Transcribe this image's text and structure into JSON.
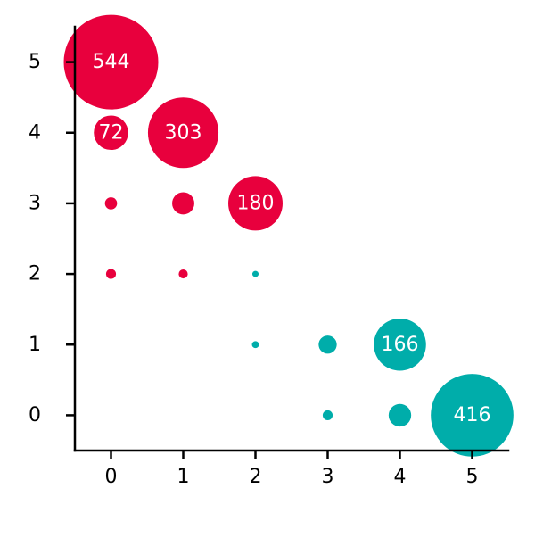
{
  "chart_data": {
    "type": "scatter",
    "title": "",
    "xlabel": "",
    "ylabel": "",
    "xlim": [
      -0.5,
      5.5
    ],
    "ylim": [
      -0.5,
      5.5
    ],
    "xticks": [
      0,
      1,
      2,
      3,
      4,
      5
    ],
    "yticks": [
      0,
      1,
      2,
      3,
      4,
      5
    ],
    "grid": false,
    "legend": "none",
    "colors": {
      "red": "#E8003D",
      "teal": "#00ADAA"
    },
    "points": [
      {
        "x": 0,
        "y": 5,
        "size": 544,
        "color": "red",
        "label": "544"
      },
      {
        "x": 0,
        "y": 4,
        "size": 72,
        "color": "red",
        "label": "72"
      },
      {
        "x": 1,
        "y": 4,
        "size": 303,
        "color": "red",
        "label": "303"
      },
      {
        "x": 0,
        "y": 3,
        "size": 9,
        "color": "red",
        "label": ""
      },
      {
        "x": 1,
        "y": 3,
        "size": 30,
        "color": "red",
        "label": ""
      },
      {
        "x": 2,
        "y": 3,
        "size": 180,
        "color": "red",
        "label": "180"
      },
      {
        "x": 0,
        "y": 2,
        "size": 6,
        "color": "red",
        "label": ""
      },
      {
        "x": 1,
        "y": 2,
        "size": 5,
        "color": "red",
        "label": ""
      },
      {
        "x": 2,
        "y": 2,
        "size": 2,
        "color": "teal",
        "label": ""
      },
      {
        "x": 2,
        "y": 1,
        "size": 3,
        "color": "teal",
        "label": ""
      },
      {
        "x": 3,
        "y": 1,
        "size": 20,
        "color": "teal",
        "label": ""
      },
      {
        "x": 4,
        "y": 1,
        "size": 166,
        "color": "teal",
        "label": "166"
      },
      {
        "x": 3,
        "y": 0,
        "size": 6,
        "color": "teal",
        "label": ""
      },
      {
        "x": 4,
        "y": 0,
        "size": 31,
        "color": "teal",
        "label": ""
      },
      {
        "x": 5,
        "y": 0,
        "size": 416,
        "color": "teal",
        "label": "416"
      }
    ]
  }
}
